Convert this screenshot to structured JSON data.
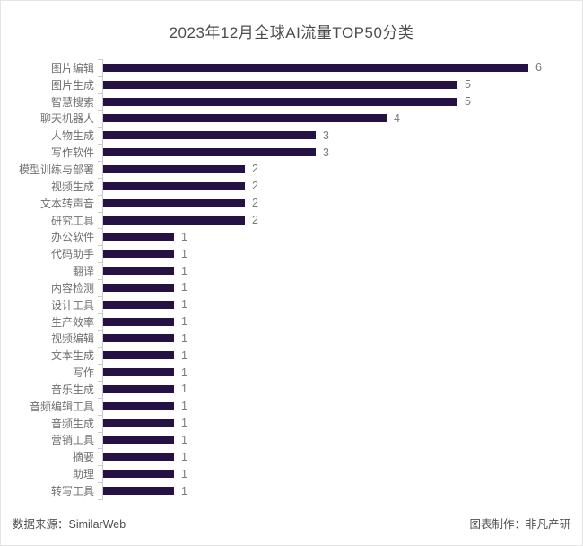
{
  "title": "2023年12月全球AI流量TOP50分类",
  "footer": {
    "source": "数据来源：SimilarWeb",
    "credit": "图表制作：非凡产研"
  },
  "colors": {
    "bar": "#251144",
    "axis": "#cccccc",
    "title_text": "#4c4c4c",
    "category_text": "#6e6e6e",
    "value_text": "#7a7a7a",
    "footer_text": "#4f4f4f",
    "background": "#ffffff"
  },
  "chart_data": {
    "type": "bar",
    "orientation": "horizontal",
    "title": "2023年12月全球AI流量TOP50分类",
    "xlabel": "",
    "ylabel": "",
    "xlim": [
      0,
      6
    ],
    "grid": false,
    "legend": false,
    "value_labels_shown": true,
    "categories": [
      "图片编辑",
      "图片生成",
      "智慧搜索",
      "聊天机器人",
      "人物生成",
      "写作软件",
      "模型训练与部署",
      "视频生成",
      "文本转声音",
      "研究工具",
      "办公软件",
      "代码助手",
      "翻译",
      "内容检测",
      "设计工具",
      "生产效率",
      "视频编辑",
      "文本生成",
      "写作",
      "音乐生成",
      "音频编辑工具",
      "音频生成",
      "营销工具",
      "摘要",
      "助理",
      "转写工具"
    ],
    "values": [
      6,
      5,
      5,
      4,
      3,
      3,
      2,
      2,
      2,
      2,
      1,
      1,
      1,
      1,
      1,
      1,
      1,
      1,
      1,
      1,
      1,
      1,
      1,
      1,
      1,
      1
    ]
  }
}
